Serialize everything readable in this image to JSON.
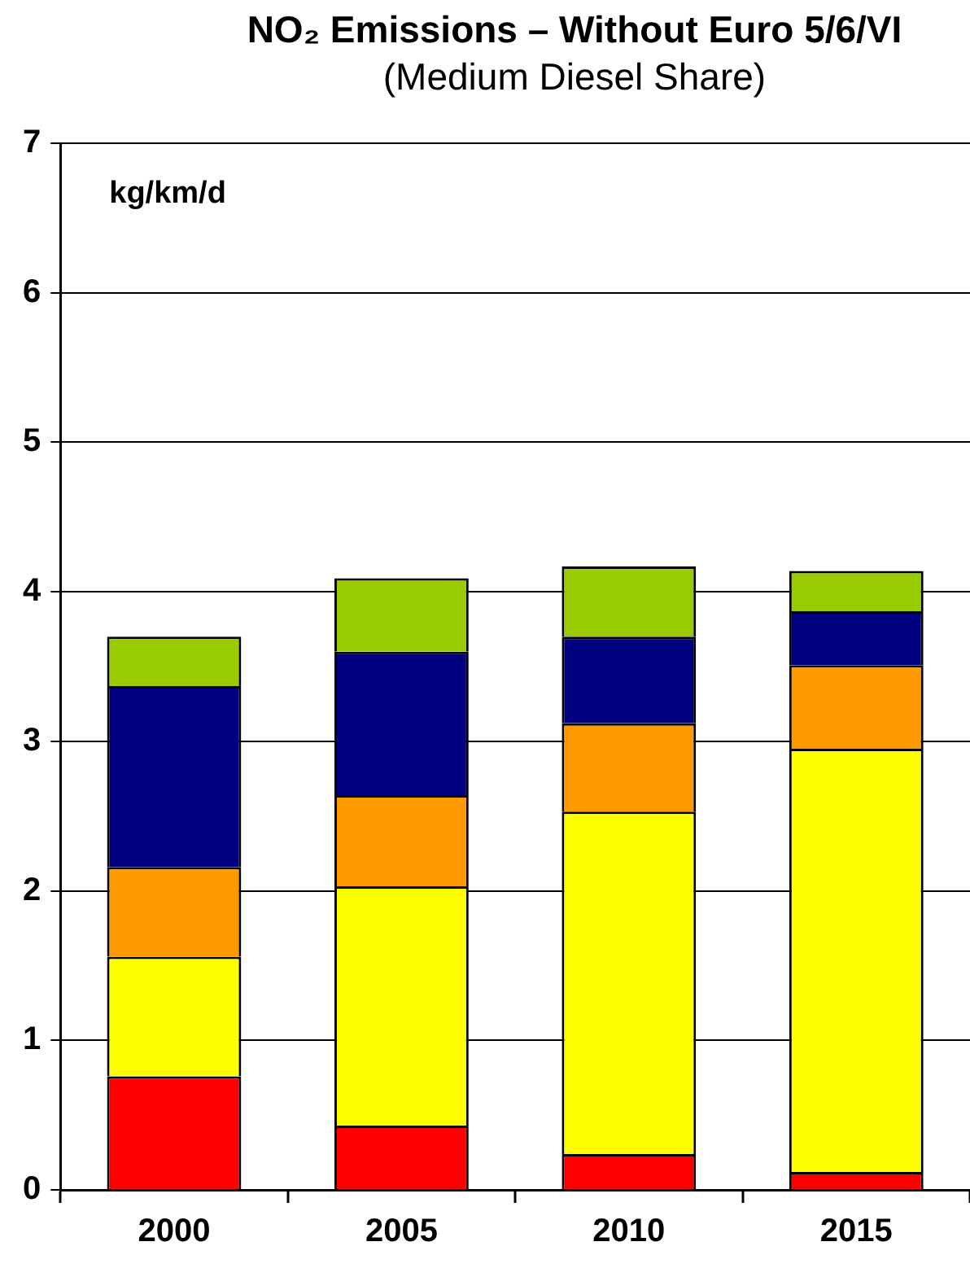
{
  "chart_data": {
    "type": "bar",
    "title": "NO₂ Emissions – Without Euro 5/6/VI",
    "subtitle": "(Medium Diesel Share)",
    "ylabel": "kg/km/d",
    "categories": [
      "2000",
      "2005",
      "2010",
      "2015"
    ],
    "stacked": true,
    "series": [
      {
        "color": "#ff0000",
        "values": [
          0.76,
          0.43,
          0.24,
          0.12
        ]
      },
      {
        "color": "#ffff00",
        "values": [
          0.8,
          1.6,
          2.29,
          2.83
        ]
      },
      {
        "color": "#ff9900",
        "values": [
          0.6,
          0.61,
          0.59,
          0.56
        ]
      },
      {
        "color": "#000080",
        "values": [
          1.21,
          0.96,
          0.58,
          0.36
        ]
      },
      {
        "color": "#99cc00",
        "values": [
          0.33,
          0.49,
          0.47,
          0.27
        ]
      }
    ],
    "ylim": [
      0,
      7
    ],
    "yticks": [
      0,
      1,
      2,
      3,
      4,
      5,
      6,
      7
    ],
    "grid": "y",
    "legend": false
  }
}
